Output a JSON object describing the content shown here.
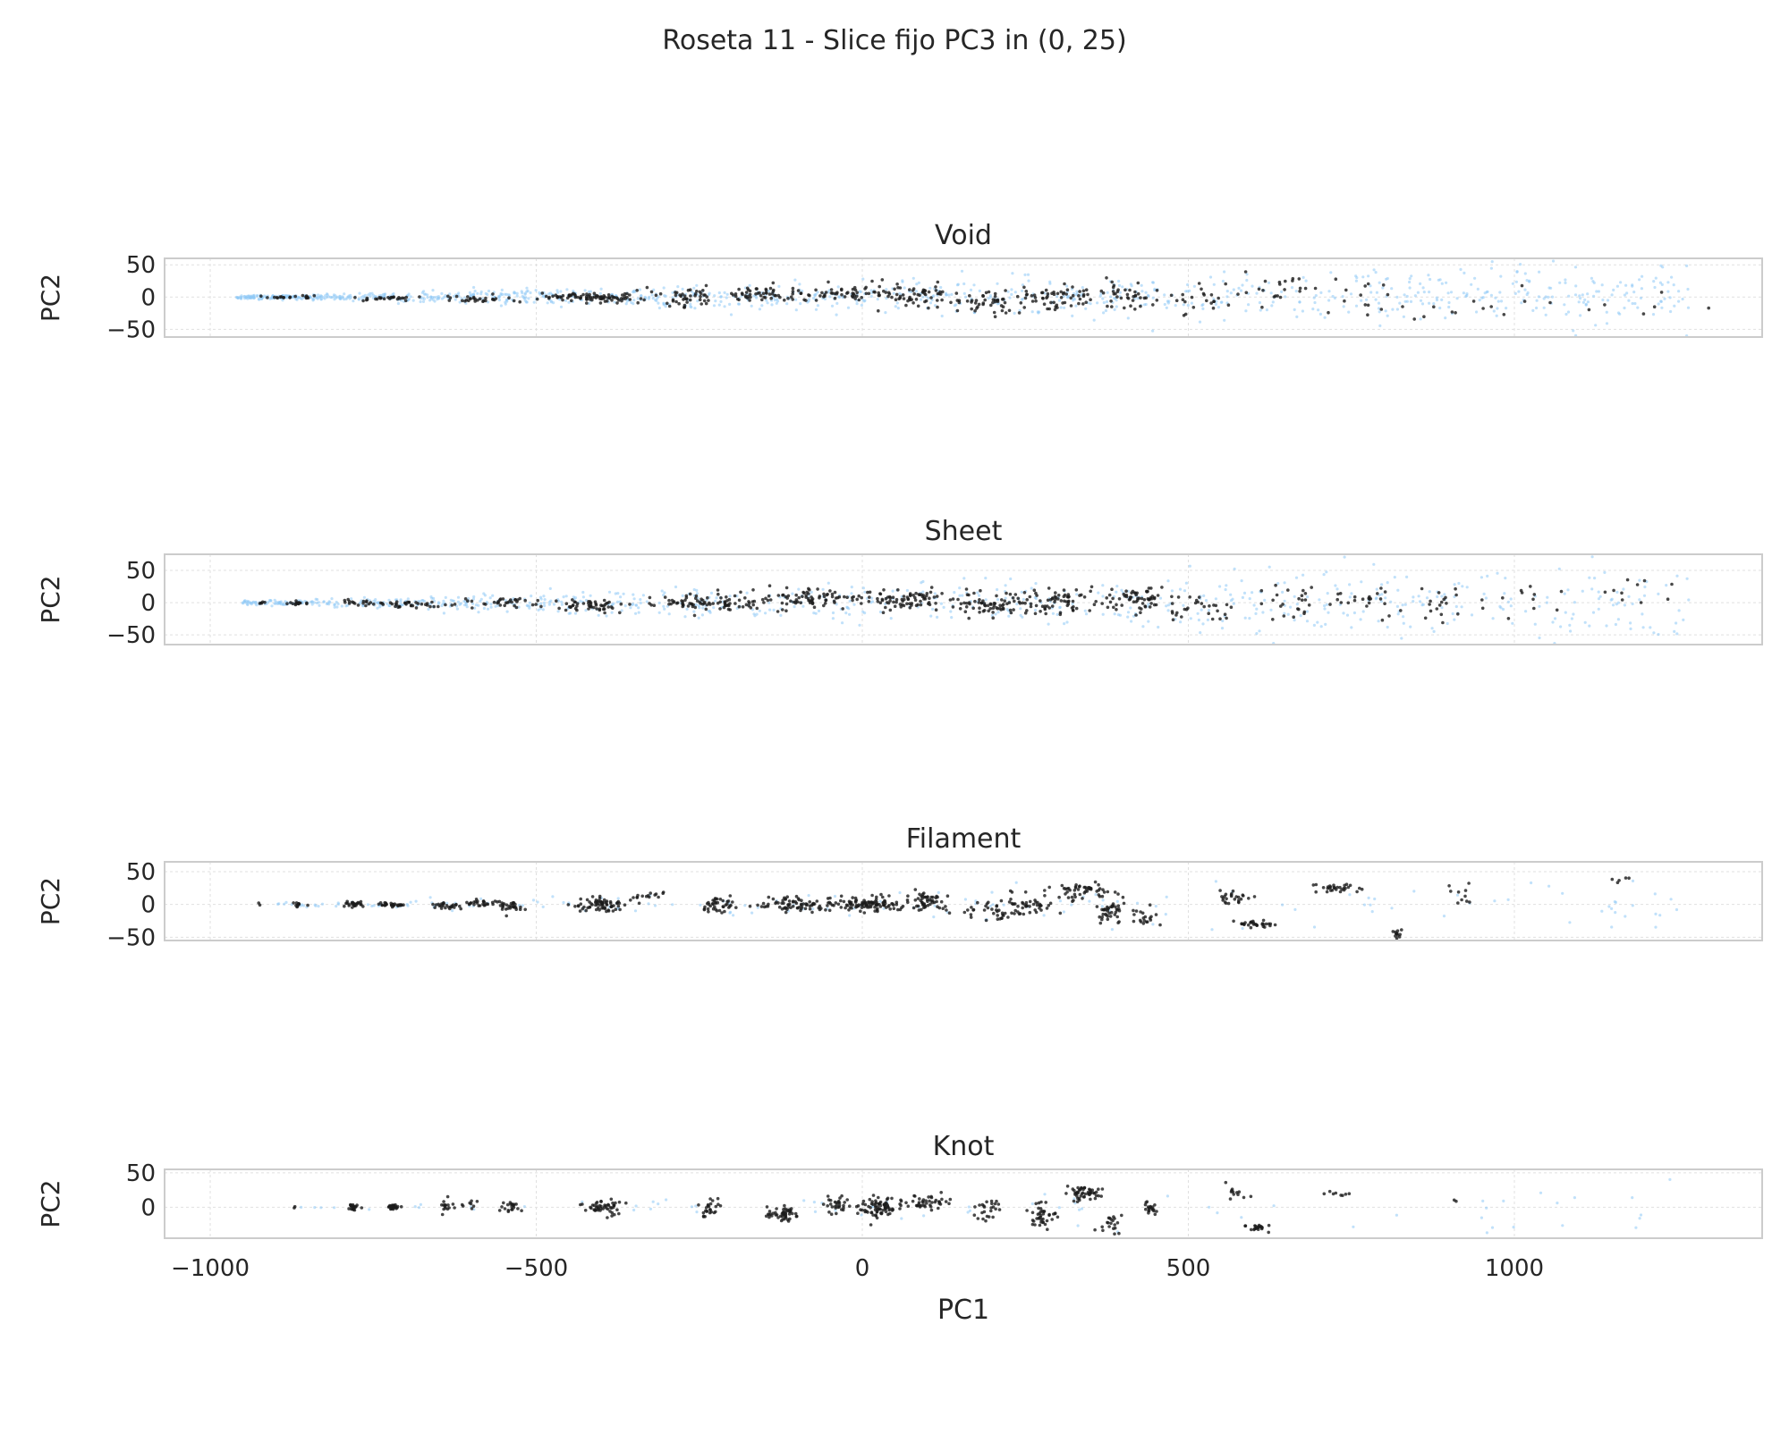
{
  "title": "Roseta 11 - Slice fijo PC3 in (0, 25)",
  "colors": {
    "background": "#8ec9f5",
    "points": "#1a1a1a",
    "frame": "#cccccc",
    "grid": "#e0e0e0"
  },
  "chart_data": {
    "type": "scatter",
    "title": "Roseta 11 - Slice fijo PC3 in (0, 25)",
    "xlabel": "PC1",
    "x_ticks": [
      -1000,
      -500,
      0,
      500,
      1000
    ],
    "x_tick_labels": [
      "−1000",
      "−500",
      "0",
      "500",
      "1000"
    ],
    "xlim": [
      -1070,
      1380
    ],
    "sharex": true,
    "grid": true,
    "panels": [
      {
        "title": "Void",
        "ylabel": "PC2",
        "ylim": [
          -62,
          60
        ],
        "y_ticks": [
          50,
          0,
          -50
        ],
        "y_tick_labels": [
          "50",
          "0",
          "−50"
        ],
        "background_range": [
          -960,
          1270
        ],
        "background_density": 0.75,
        "background_spread": 0.7,
        "clusters": [
          [
            -880,
            0,
            50,
            2,
            20
          ],
          [
            -730,
            -2,
            60,
            4,
            25
          ],
          [
            -570,
            -3,
            80,
            6,
            30
          ],
          [
            -440,
            0,
            60,
            8,
            45
          ],
          [
            -380,
            -2,
            50,
            10,
            40
          ],
          [
            -270,
            0,
            60,
            12,
            45
          ],
          [
            -150,
            5,
            60,
            14,
            50
          ],
          [
            -40,
            5,
            70,
            15,
            55
          ],
          [
            80,
            0,
            70,
            16,
            60
          ],
          [
            200,
            -5,
            60,
            18,
            50
          ],
          [
            300,
            0,
            60,
            20,
            50
          ],
          [
            400,
            5,
            60,
            20,
            40
          ],
          [
            520,
            0,
            60,
            22,
            25
          ],
          [
            650,
            15,
            60,
            25,
            20
          ],
          [
            760,
            0,
            60,
            28,
            12
          ],
          [
            880,
            -20,
            80,
            25,
            10
          ],
          [
            1050,
            -10,
            150,
            25,
            10
          ]
        ]
      },
      {
        "title": "Sheet",
        "ylabel": "PC2",
        "ylim": [
          -65,
          75
        ],
        "y_ticks": [
          50,
          0,
          -50
        ],
        "y_tick_labels": [
          "50",
          "0",
          "−50"
        ],
        "background_range": [
          -950,
          1270
        ],
        "background_density": 0.55,
        "background_spread": 0.75,
        "clusters": [
          [
            -920,
            0,
            5,
            2,
            5
          ],
          [
            -865,
            0,
            15,
            3,
            15
          ],
          [
            -760,
            0,
            40,
            4,
            20
          ],
          [
            -680,
            -3,
            60,
            5,
            30
          ],
          [
            -560,
            0,
            60,
            7,
            35
          ],
          [
            -420,
            -5,
            50,
            10,
            50
          ],
          [
            -270,
            0,
            60,
            12,
            40
          ],
          [
            -200,
            0,
            60,
            14,
            50
          ],
          [
            -80,
            5,
            60,
            15,
            65
          ],
          [
            60,
            5,
            80,
            15,
            90
          ],
          [
            200,
            -5,
            60,
            18,
            60
          ],
          [
            300,
            0,
            70,
            20,
            70
          ],
          [
            420,
            5,
            60,
            20,
            60
          ],
          [
            520,
            -10,
            60,
            22,
            30
          ],
          [
            660,
            0,
            60,
            25,
            25
          ],
          [
            780,
            5,
            60,
            28,
            20
          ],
          [
            900,
            0,
            60,
            28,
            20
          ],
          [
            1020,
            0,
            60,
            28,
            10
          ],
          [
            1180,
            20,
            50,
            28,
            10
          ]
        ]
      },
      {
        "title": "Filament",
        "ylabel": "PC2",
        "ylim": [
          -55,
          65
        ],
        "y_ticks": [
          50,
          0,
          -50
        ],
        "y_tick_labels": [
          "50",
          "0",
          "−50"
        ],
        "background_range": [
          -900,
          1250
        ],
        "background_density": 0.12,
        "background_spread": 0.7,
        "clusters": [
          [
            -925,
            0,
            3,
            2,
            2
          ],
          [
            -865,
            0,
            10,
            3,
            10
          ],
          [
            -780,
            0,
            15,
            5,
            25
          ],
          [
            -720,
            0,
            20,
            4,
            30
          ],
          [
            -640,
            -2,
            25,
            5,
            25
          ],
          [
            -590,
            2,
            25,
            6,
            25
          ],
          [
            -540,
            -3,
            20,
            6,
            30
          ],
          [
            -400,
            0,
            35,
            10,
            70
          ],
          [
            -330,
            10,
            25,
            8,
            15
          ],
          [
            -220,
            0,
            25,
            12,
            40
          ],
          [
            -110,
            0,
            50,
            12,
            70
          ],
          [
            10,
            0,
            60,
            12,
            110
          ],
          [
            100,
            5,
            30,
            14,
            50
          ],
          [
            200,
            -10,
            50,
            15,
            40
          ],
          [
            260,
            0,
            40,
            15,
            40
          ],
          [
            340,
            20,
            40,
            12,
            50
          ],
          [
            380,
            -10,
            25,
            20,
            40
          ],
          [
            440,
            -20,
            30,
            15,
            20
          ],
          [
            570,
            10,
            25,
            15,
            25
          ],
          [
            600,
            -30,
            40,
            8,
            30
          ],
          [
            730,
            25,
            40,
            8,
            30
          ],
          [
            820,
            -45,
            10,
            5,
            12
          ],
          [
            920,
            10,
            20,
            15,
            10
          ],
          [
            1160,
            40,
            30,
            5,
            5
          ]
        ]
      },
      {
        "title": "Knot",
        "ylabel": "PC2",
        "ylim": [
          -45,
          55
        ],
        "y_ticks": [
          50,
          0
        ],
        "y_tick_labels": [
          "50",
          "0"
        ],
        "background_range": [
          -880,
          1240
        ],
        "background_density": 0.05,
        "background_spread": 0.6,
        "clusters": [
          [
            -870,
            0,
            3,
            2,
            2
          ],
          [
            -780,
            0,
            10,
            4,
            20
          ],
          [
            -720,
            0,
            10,
            3,
            25
          ],
          [
            -640,
            0,
            10,
            8,
            15
          ],
          [
            -600,
            5,
            20,
            5,
            8
          ],
          [
            -540,
            0,
            12,
            8,
            20
          ],
          [
            -400,
            0,
            30,
            12,
            50
          ],
          [
            -230,
            0,
            15,
            15,
            25
          ],
          [
            -120,
            -10,
            25,
            12,
            50
          ],
          [
            -40,
            5,
            20,
            15,
            30
          ],
          [
            30,
            0,
            30,
            15,
            80
          ],
          [
            100,
            5,
            30,
            10,
            40
          ],
          [
            190,
            -5,
            25,
            15,
            25
          ],
          [
            270,
            -10,
            25,
            20,
            40
          ],
          [
            340,
            20,
            30,
            12,
            50
          ],
          [
            380,
            -20,
            15,
            15,
            20
          ],
          [
            440,
            0,
            10,
            10,
            20
          ],
          [
            570,
            20,
            25,
            10,
            12
          ],
          [
            610,
            -30,
            20,
            5,
            20
          ],
          [
            730,
            20,
            20,
            5,
            8
          ],
          [
            910,
            10,
            3,
            3,
            2
          ]
        ]
      }
    ]
  }
}
